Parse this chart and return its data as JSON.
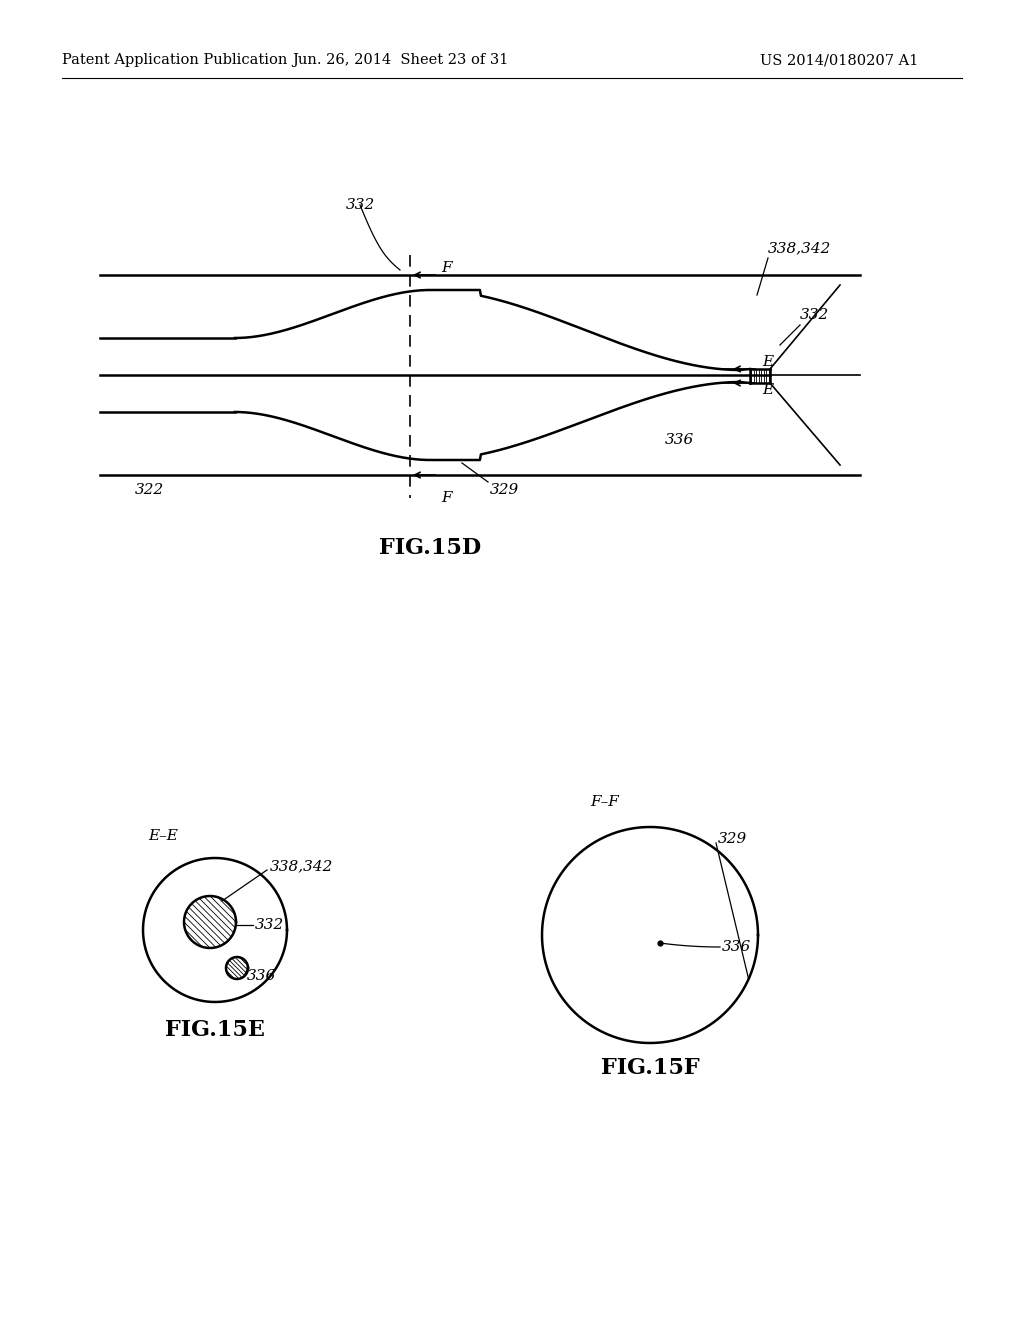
{
  "bg_color": "#ffffff",
  "header_left": "Patent Application Publication",
  "header_mid": "Jun. 26, 2014  Sheet 23 of 31",
  "header_right": "US 2014/0180207 A1",
  "fig_label_15D": "FIG.15D",
  "fig_label_15E": "FIG.15E",
  "fig_label_15F": "FIG.15F",
  "label_332_top": "332",
  "label_338342": "338,342",
  "label_332_right": "332",
  "label_322": "322",
  "label_329": "329",
  "label_336": "336",
  "label_EE": "E–E",
  "label_FF": "F–F",
  "label_338342_e": "338,342",
  "label_332_e": "332",
  "label_336_e": "336",
  "label_329_f": "329",
  "label_336_f": "336"
}
